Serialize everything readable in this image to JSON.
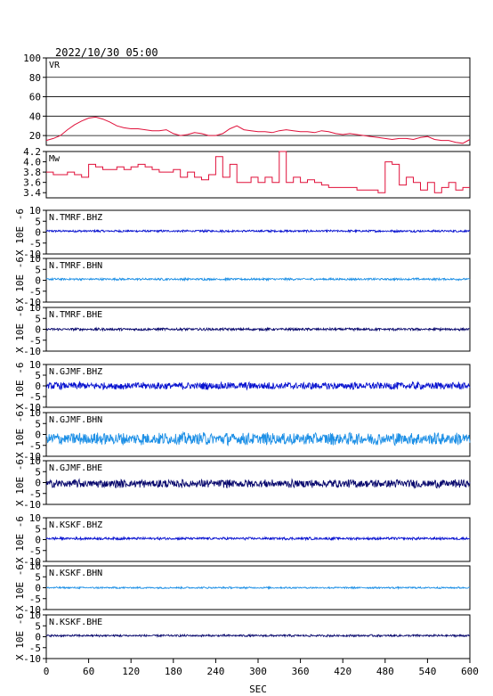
{
  "header": {
    "datetime": "2022/10/30 05:00"
  },
  "chart_data": [
    {
      "type": "line",
      "label": "VR",
      "color": "#e0103a",
      "xlim": [
        0,
        600
      ],
      "ylim": [
        10,
        100
      ],
      "yticks": [
        20,
        40,
        60,
        80,
        100
      ],
      "grid": true,
      "x": [
        0,
        10,
        20,
        30,
        40,
        50,
        60,
        70,
        80,
        90,
        100,
        110,
        120,
        130,
        140,
        150,
        160,
        170,
        180,
        190,
        200,
        210,
        220,
        230,
        240,
        250,
        260,
        270,
        280,
        290,
        300,
        310,
        320,
        330,
        340,
        350,
        360,
        370,
        380,
        390,
        400,
        410,
        420,
        430,
        440,
        450,
        460,
        470,
        480,
        490,
        500,
        510,
        520,
        530,
        540,
        550,
        560,
        570,
        580,
        590,
        600
      ],
      "values": [
        15,
        17,
        20,
        26,
        31,
        35,
        38,
        39,
        37,
        34,
        30,
        28,
        27,
        27,
        26,
        25,
        25,
        26,
        22,
        20,
        21,
        23,
        22,
        20,
        20,
        22,
        27,
        30,
        26,
        25,
        24,
        24,
        23,
        25,
        26,
        25,
        24,
        24,
        23,
        25,
        24,
        22,
        21,
        22,
        21,
        20,
        19,
        18,
        17,
        16,
        17,
        17,
        16,
        18,
        19,
        16,
        15,
        15,
        13,
        12,
        16
      ]
    },
    {
      "type": "line",
      "label": "Mw",
      "color": "#e0103a",
      "xlim": [
        0,
        600
      ],
      "ylim": [
        3.3,
        4.2
      ],
      "yticks": [
        3.4,
        3.6,
        3.8,
        4.0,
        4.2
      ],
      "grid": false,
      "x": [
        0,
        10,
        20,
        30,
        40,
        50,
        60,
        70,
        80,
        90,
        100,
        110,
        120,
        130,
        140,
        150,
        160,
        170,
        180,
        190,
        200,
        210,
        220,
        230,
        240,
        250,
        260,
        270,
        280,
        290,
        300,
        310,
        320,
        330,
        340,
        350,
        360,
        370,
        380,
        390,
        400,
        410,
        420,
        430,
        440,
        450,
        460,
        470,
        480,
        490,
        500,
        510,
        520,
        530,
        540,
        550,
        560,
        570,
        580,
        590,
        600
      ],
      "values": [
        3.8,
        3.75,
        3.75,
        3.8,
        3.75,
        3.7,
        3.95,
        3.9,
        3.85,
        3.85,
        3.9,
        3.85,
        3.9,
        3.95,
        3.9,
        3.85,
        3.8,
        3.8,
        3.85,
        3.7,
        3.8,
        3.7,
        3.65,
        3.75,
        4.1,
        3.7,
        3.95,
        3.6,
        3.6,
        3.7,
        3.6,
        3.7,
        3.6,
        4.2,
        3.6,
        3.7,
        3.6,
        3.65,
        3.6,
        3.55,
        3.5,
        3.5,
        3.5,
        3.5,
        3.45,
        3.45,
        3.45,
        3.4,
        4.0,
        3.95,
        3.55,
        3.7,
        3.6,
        3.45,
        3.6,
        3.4,
        3.5,
        3.6,
        3.45,
        3.5,
        3.5
      ]
    },
    {
      "type": "line",
      "label": "N.TMRF.BHZ",
      "color": "#0a14d0",
      "unit_label": "X 10E -6",
      "xlim": [
        0,
        600
      ],
      "ylim": [
        -10,
        10
      ],
      "yticks": [
        -10,
        -5,
        0,
        5,
        10
      ],
      "amplitude": 0.5,
      "offset": 0.5
    },
    {
      "type": "line",
      "label": "N.TMRF.BHN",
      "color": "#1e90e6",
      "unit_label": "X 10E -6",
      "xlim": [
        0,
        600
      ],
      "ylim": [
        -10,
        10
      ],
      "yticks": [
        -10,
        -5,
        0,
        5,
        10
      ],
      "amplitude": 0.5,
      "offset": 0.5
    },
    {
      "type": "line",
      "label": "N.TMRF.BHE",
      "color": "#0a0a6e",
      "unit_label": "X 10E -6",
      "xlim": [
        0,
        600
      ],
      "ylim": [
        -10,
        10
      ],
      "yticks": [
        -10,
        -5,
        0,
        5,
        10
      ],
      "amplitude": 0.6,
      "offset": 0
    },
    {
      "type": "line",
      "label": "N.GJMF.BHZ",
      "color": "#0a14d0",
      "unit_label": "X 10E -6",
      "xlim": [
        0,
        600
      ],
      "ylim": [
        -10,
        10
      ],
      "yticks": [
        -10,
        -5,
        0,
        5,
        10
      ],
      "amplitude": 1.8,
      "offset": 0
    },
    {
      "type": "line",
      "label": "N.GJMF.BHN",
      "color": "#1e90e6",
      "unit_label": "X 10E -6",
      "xlim": [
        0,
        600
      ],
      "ylim": [
        -10,
        10
      ],
      "yticks": [
        -10,
        -5,
        0,
        5,
        10
      ],
      "amplitude": 3.0,
      "offset": -2
    },
    {
      "type": "line",
      "label": "N.GJMF.BHE",
      "color": "#0a0a6e",
      "unit_label": "X 10E -6",
      "xlim": [
        0,
        600
      ],
      "ylim": [
        -10,
        10
      ],
      "yticks": [
        -10,
        -5,
        0,
        5,
        10
      ],
      "amplitude": 2.0,
      "offset": -0.5
    },
    {
      "type": "line",
      "label": "N.KSKF.BHZ",
      "color": "#0a14d0",
      "unit_label": "X 10E -6",
      "xlim": [
        0,
        600
      ],
      "ylim": [
        -10,
        10
      ],
      "yticks": [
        -10,
        -5,
        0,
        5,
        10
      ],
      "amplitude": 0.6,
      "offset": 0.5
    },
    {
      "type": "line",
      "label": "N.KSKF.BHN",
      "color": "#1e90e6",
      "unit_label": "X 10E -6",
      "xlim": [
        0,
        600
      ],
      "ylim": [
        -10,
        10
      ],
      "yticks": [
        -10,
        -5,
        0,
        5,
        10
      ],
      "amplitude": 0.4,
      "offset": 0
    },
    {
      "type": "line",
      "label": "N.KSKF.BHE",
      "color": "#0a0a6e",
      "unit_label": "X 10E -6",
      "xlim": [
        0,
        600
      ],
      "ylim": [
        -10,
        10
      ],
      "yticks": [
        -10,
        -5,
        0,
        5,
        10
      ],
      "amplitude": 0.5,
      "offset": 0.5
    }
  ],
  "x_axis": {
    "ticks": [
      0,
      60,
      120,
      180,
      240,
      300,
      360,
      420,
      480,
      540,
      600
    ],
    "xlabel": "SEC"
  }
}
